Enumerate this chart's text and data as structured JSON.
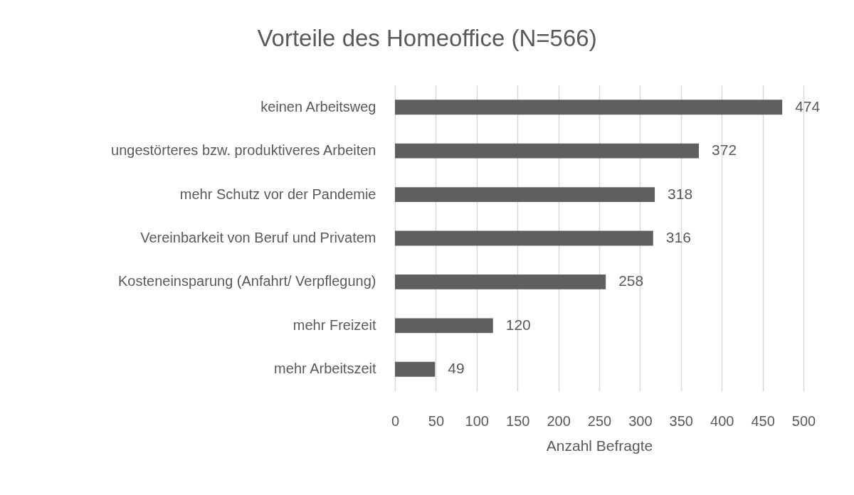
{
  "chart_data": {
    "type": "bar",
    "orientation": "horizontal",
    "title": "Vorteile des Homeoffice (N=566)",
    "xlabel": "Anzahl Befragte",
    "categories": [
      "keinen Arbeitsweg",
      "ungestörteres bzw. produktiveres Arbeiten",
      "mehr Schutz vor der Pandemie",
      "Vereinbarkeit von Beruf und Privatem",
      "Kosteneinsparung (Anfahrt/ Verpflegung)",
      "mehr Freizeit",
      "mehr Arbeitszeit"
    ],
    "values": [
      474,
      372,
      318,
      316,
      258,
      120,
      49
    ],
    "color": "#5f5f5f",
    "xlim": [
      0,
      500
    ],
    "xticks": [
      0,
      50,
      100,
      150,
      200,
      250,
      300,
      350,
      400,
      450,
      500
    ],
    "grid": "x",
    "data_labels": true
  }
}
